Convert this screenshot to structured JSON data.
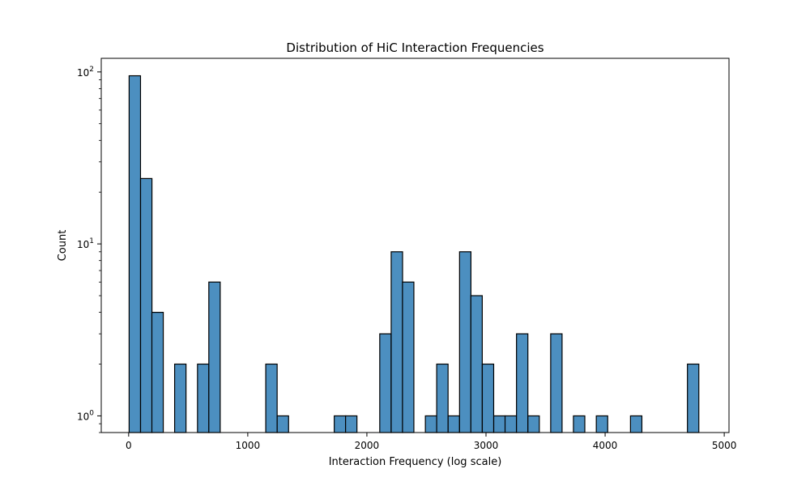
{
  "chart_data": {
    "type": "bar",
    "title": "Distribution of HiC Interaction Frequencies",
    "xlabel": "Interaction Frequency (log scale)",
    "ylabel": "Count",
    "y_scale": "log",
    "ylim": [
      0.8,
      120
    ],
    "xlim": [
      -230,
      5040
    ],
    "x_ticks": [
      0,
      1000,
      2000,
      3000,
      4000,
      5000
    ],
    "y_ticks": [
      {
        "value": 1,
        "base": "10",
        "exp": "0"
      },
      {
        "value": 10,
        "base": "10",
        "exp": "1"
      },
      {
        "value": 100,
        "base": "10",
        "exp": "2"
      }
    ],
    "bin_width": 95.6,
    "bins_start": 4,
    "bar_color": "#4c8fc0",
    "edge_color": "#000000",
    "grid": false,
    "bins": [
      {
        "x": 4,
        "count": 95
      },
      {
        "x": 100,
        "count": 24
      },
      {
        "x": 195,
        "count": 4
      },
      {
        "x": 386,
        "count": 2
      },
      {
        "x": 578,
        "count": 2
      },
      {
        "x": 673,
        "count": 6
      },
      {
        "x": 1151,
        "count": 2
      },
      {
        "x": 1247,
        "count": 1
      },
      {
        "x": 1726,
        "count": 1
      },
      {
        "x": 1821,
        "count": 1
      },
      {
        "x": 2108,
        "count": 3
      },
      {
        "x": 2204,
        "count": 9
      },
      {
        "x": 2299,
        "count": 6
      },
      {
        "x": 2491,
        "count": 1
      },
      {
        "x": 2586,
        "count": 2
      },
      {
        "x": 2682,
        "count": 1
      },
      {
        "x": 2778,
        "count": 9
      },
      {
        "x": 2873,
        "count": 5
      },
      {
        "x": 2969,
        "count": 2
      },
      {
        "x": 3065,
        "count": 1
      },
      {
        "x": 3160,
        "count": 1
      },
      {
        "x": 3256,
        "count": 3
      },
      {
        "x": 3352,
        "count": 1
      },
      {
        "x": 3543,
        "count": 3
      },
      {
        "x": 3734,
        "count": 1
      },
      {
        "x": 3926,
        "count": 1
      },
      {
        "x": 4213,
        "count": 1
      },
      {
        "x": 4691,
        "count": 2
      }
    ]
  }
}
